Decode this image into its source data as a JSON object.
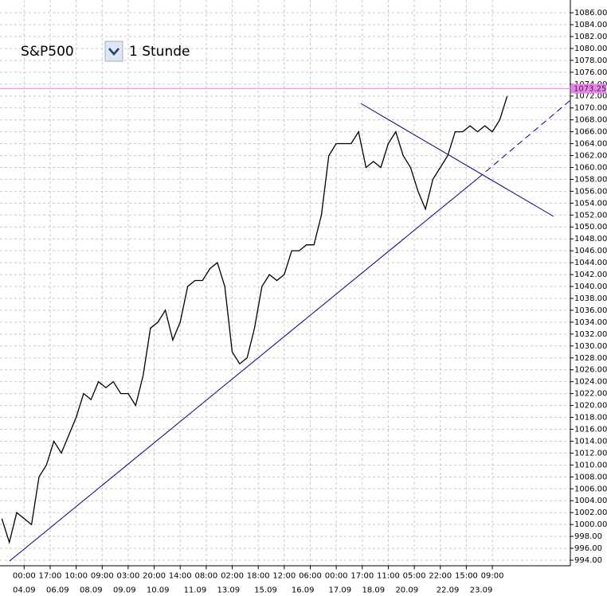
{
  "chart_data": {
    "type": "line",
    "symbol": "S&P500",
    "timeframe": "1 Stunde",
    "x": [
      0,
      2,
      4,
      6,
      8,
      10,
      12,
      14,
      16,
      18,
      20,
      22,
      24,
      26,
      28,
      30,
      32,
      34,
      36,
      38,
      40,
      42,
      44,
      46,
      48,
      50,
      52,
      54,
      56,
      58,
      60,
      62,
      64,
      66,
      68,
      70,
      72,
      74,
      76,
      78,
      80,
      82,
      84,
      86,
      88,
      90,
      92,
      94,
      96,
      98,
      100,
      102,
      104,
      106,
      108,
      110,
      112,
      114,
      116,
      118,
      120,
      122,
      124,
      126,
      128,
      130,
      132,
      134,
      136
    ],
    "series": [
      {
        "color": "#000000",
        "values": [
          1001,
          997,
          1002,
          1001,
          1000,
          1008,
          1010,
          1014,
          1012,
          1015,
          1018,
          1022,
          1021,
          1024,
          1023,
          1024,
          1022,
          1022,
          1020,
          1025,
          1033,
          1034,
          1036,
          1031,
          1034,
          1040,
          1041,
          1041,
          1043,
          1044,
          1040,
          1029,
          1027,
          1028,
          1033,
          1040,
          1042,
          1041,
          1042,
          1046,
          1046,
          1047,
          1047,
          1052,
          1062,
          1064,
          1064,
          1064,
          1066,
          1060,
          1061,
          1060,
          1064,
          1066,
          1062,
          1060,
          1056,
          1053,
          1058,
          1060,
          1062,
          1066,
          1066,
          1067,
          1066,
          1067,
          1066,
          1068,
          1072
        ]
      }
    ],
    "price_line": {
      "value": 1073.25,
      "color": "#ee82ee"
    },
    "xlim": [
      -0.5,
      153
    ],
    "ylim": [
      993,
      1087.5
    ],
    "xticks": [
      {
        "value": 6,
        "label": "00:00"
      },
      {
        "value": 13,
        "label": "17:00"
      },
      {
        "value": 20,
        "label": "10:00"
      },
      {
        "value": 27,
        "label": "09:00"
      },
      {
        "value": 34,
        "label": "03:00"
      },
      {
        "value": 41,
        "label": "20:00"
      },
      {
        "value": 48,
        "label": "14:00"
      },
      {
        "value": 55,
        "label": "08:00"
      },
      {
        "value": 62,
        "label": "02:00"
      },
      {
        "value": 69,
        "label": "18:00"
      },
      {
        "value": 76,
        "label": "12:00"
      },
      {
        "value": 83,
        "label": "06:00"
      },
      {
        "value": 90,
        "label": "00:00"
      },
      {
        "value": 97,
        "label": "17:00"
      },
      {
        "value": 104,
        "label": "11:00"
      },
      {
        "value": 111,
        "label": "05:00"
      },
      {
        "value": 118,
        "label": "22:00"
      },
      {
        "value": 125,
        "label": "15:00"
      },
      {
        "value": 132,
        "label": "09:00"
      }
    ],
    "date_ticks": [
      {
        "value": 6,
        "label": "04.09"
      },
      {
        "value": 15,
        "label": "06.09"
      },
      {
        "value": 24,
        "label": "08.09"
      },
      {
        "value": 33,
        "label": "09.09"
      },
      {
        "value": 42,
        "label": "10.09"
      },
      {
        "value": 52,
        "label": "11.09"
      },
      {
        "value": 61,
        "label": "13.09"
      },
      {
        "value": 71,
        "label": "15.09"
      },
      {
        "value": 81,
        "label": "16.09"
      },
      {
        "value": 91,
        "label": "17.09"
      },
      {
        "value": 100,
        "label": "18.09"
      },
      {
        "value": 109,
        "label": "20.09"
      },
      {
        "value": 120,
        "label": "22.09"
      },
      {
        "value": 129,
        "label": "23.09"
      }
    ],
    "yticks": [
      {
        "value": 994,
        "label": "994.00"
      },
      {
        "value": 996,
        "label": "996.00"
      },
      {
        "value": 998,
        "label": "998.00"
      },
      {
        "value": 1000,
        "label": "1000.00"
      },
      {
        "value": 1002,
        "label": "1002.00"
      },
      {
        "value": 1004,
        "label": "1004.00"
      },
      {
        "value": 1006,
        "label": "1006.00"
      },
      {
        "value": 1008,
        "label": "1008.00"
      },
      {
        "value": 1010,
        "label": "1010.00"
      },
      {
        "value": 1012,
        "label": "1012.00"
      },
      {
        "value": 1014,
        "label": "1014.00"
      },
      {
        "value": 1016,
        "label": "1016.00"
      },
      {
        "value": 1018,
        "label": "1018.00"
      },
      {
        "value": 1020,
        "label": "1020.00"
      },
      {
        "value": 1022,
        "label": "1022.00"
      },
      {
        "value": 1024,
        "label": "1024.00"
      },
      {
        "value": 1026,
        "label": "1026.00"
      },
      {
        "value": 1028,
        "label": "1028.00"
      },
      {
        "value": 1030,
        "label": "1030.00"
      },
      {
        "value": 1032,
        "label": "1032.00"
      },
      {
        "value": 1034,
        "label": "1034.00"
      },
      {
        "value": 1036,
        "label": "1036.00"
      },
      {
        "value": 1038,
        "label": "1038.00"
      },
      {
        "value": 1040,
        "label": "1040.00"
      },
      {
        "value": 1042,
        "label": "1042.00"
      },
      {
        "value": 1044,
        "label": "1044.00"
      },
      {
        "value": 1046,
        "label": "1046.00"
      },
      {
        "value": 1048,
        "label": "1048.00"
      },
      {
        "value": 1050,
        "label": "1050.00"
      },
      {
        "value": 1052,
        "label": "1052.00"
      },
      {
        "value": 1054,
        "label": "1054.00"
      },
      {
        "value": 1056,
        "label": "1056.00"
      },
      {
        "value": 1058,
        "label": "1058.00"
      },
      {
        "value": 1060,
        "label": "1060.00"
      },
      {
        "value": 1062,
        "label": "1062.00"
      },
      {
        "value": 1064,
        "label": "1064.00"
      },
      {
        "value": 1066,
        "label": "1066.00"
      },
      {
        "value": 1068,
        "label": "1068.00"
      },
      {
        "value": 1070,
        "label": "1070.00"
      },
      {
        "value": 1072,
        "label": "1072.00"
      },
      {
        "value": 1074,
        "label": "1074.00"
      },
      {
        "value": 1076,
        "label": "1076.00"
      },
      {
        "value": 1078,
        "label": "1078.00"
      },
      {
        "value": 1080,
        "label": "1080.00"
      },
      {
        "value": 1082,
        "label": "1082.00"
      },
      {
        "value": 1084,
        "label": "1084.00"
      },
      {
        "value": 1086,
        "label": "1086.00"
      }
    ],
    "grid": true
  }
}
